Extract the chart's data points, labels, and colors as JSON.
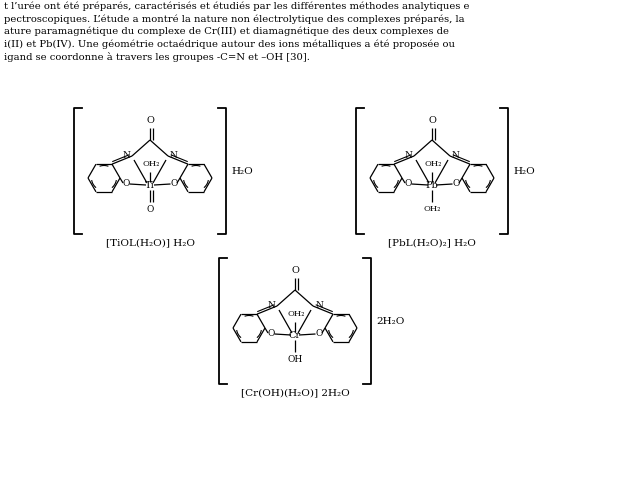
{
  "bg_color": "#ffffff",
  "line_color": "#000000",
  "text_top_lines": [
    "t l’urée ont été préparés, caractérisés et étudiés par les différentes méthodes analytiques e",
    "pectroscopiques. L’étude a montré la nature non électrolytique des complexes préparés, la",
    "ature paramagnétique du complexe de Cr(III) et diamagnétique des deux complexes de",
    "i(II) et Pb(IV). Une géométrie octaédrique autour des ions métalliques a été proposée ou",
    "igand se coordonne à travers les groupes -C=N et –OH [30]."
  ],
  "struct1_label": "[TiOL(H₂O)] H₂O",
  "struct2_label": "[PbL(H₂O)₂] H₂O",
  "struct3_label": "[Cr(OH)(H₂O)] 2H₂O",
  "h2o_label": "H₂O",
  "two_h2o_label": "2H₂O"
}
